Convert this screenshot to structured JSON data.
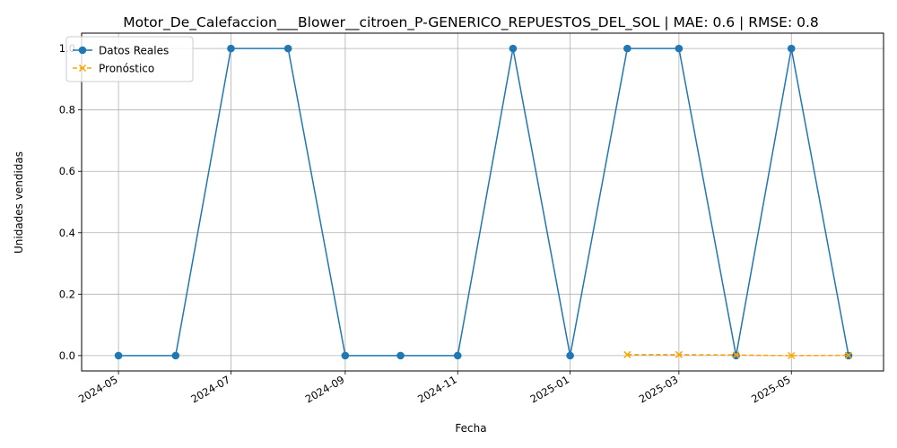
{
  "chart_data": {
    "type": "line",
    "title": "Motor_De_Calefaccion___Blower__citroen_P-GENERICO_REPUESTOS_DEL_SOL | MAE: 0.6 | RMSE: 0.8",
    "xlabel": "Fecha",
    "ylabel": "Unidades vendidas",
    "x_ticks": [
      "2024-05",
      "2024-07",
      "2024-09",
      "2024-11",
      "2025-01",
      "2025-03",
      "2025-05"
    ],
    "x_tick_dates": [
      "2024-05-01",
      "2024-07-01",
      "2024-09-01",
      "2024-11-01",
      "2025-01-01",
      "2025-03-01",
      "2025-05-01"
    ],
    "y_ticks": [
      "0.0",
      "0.2",
      "0.4",
      "0.6",
      "0.8",
      "1.0"
    ],
    "xlim": [
      "2024-04-11",
      "2025-06-20"
    ],
    "ylim": [
      -0.05,
      1.05
    ],
    "grid": true,
    "legend_position": "top-left",
    "series": [
      {
        "name": "Datos Reales",
        "color": "#1f77b4",
        "marker": "circle",
        "line_style": "solid",
        "x": [
          "2024-05-01",
          "2024-06-01",
          "2024-07-01",
          "2024-08-01",
          "2024-09-01",
          "2024-10-01",
          "2024-11-01",
          "2024-12-01",
          "2025-01-01",
          "2025-02-01",
          "2025-03-01",
          "2025-04-01",
          "2025-05-01",
          "2025-06-01"
        ],
        "values": [
          0,
          0,
          1,
          1,
          0,
          0,
          0,
          1,
          0,
          1,
          1,
          0,
          1,
          0
        ]
      },
      {
        "name": "Pronóstico",
        "color": "#ffa500",
        "marker": "x",
        "line_style": "dashed",
        "x": [
          "2025-02-01",
          "2025-03-01",
          "2025-04-01",
          "2025-05-01",
          "2025-06-01"
        ],
        "values": [
          0.003,
          0.003,
          0.002,
          0.0,
          0.001
        ]
      }
    ]
  }
}
